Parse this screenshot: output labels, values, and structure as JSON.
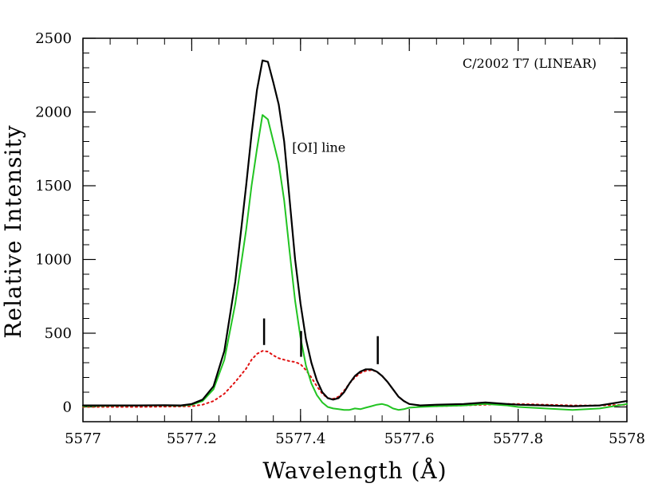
{
  "chart_data": {
    "type": "line",
    "title": "C/2002 T7 (LINEAR)",
    "xlabel": "Wavelength (Å)",
    "ylabel": "Relative Intensity",
    "xlim": [
      5577.0,
      5578.0
    ],
    "ylim": [
      -100,
      2500
    ],
    "x_ticks": [
      5577.0,
      5577.2,
      5577.4,
      5577.6,
      5577.8,
      5578.0
    ],
    "x_tick_labels": [
      "5577",
      "5577.2",
      "5577.4",
      "5577.6",
      "5577.8",
      "5578"
    ],
    "y_ticks": [
      0,
      500,
      1000,
      1500,
      2000,
      2500
    ],
    "y_tick_labels": [
      "0",
      "500",
      "1000",
      "1500",
      "2000",
      "2500"
    ],
    "annotations": [
      {
        "text": "[OI] line",
        "x": 5577.405,
        "y": 1730
      }
    ],
    "line_markers": [
      {
        "x": 5577.333,
        "y_bottom": 420,
        "y_top": 600
      },
      {
        "x": 5577.401,
        "y_bottom": 340,
        "y_top": 515
      },
      {
        "x": 5577.542,
        "y_bottom": 290,
        "y_top": 480
      }
    ],
    "series": [
      {
        "color": "#000000",
        "style": "solid",
        "x": [
          5577.0,
          5577.05,
          5577.1,
          5577.15,
          5577.18,
          5577.2,
          5577.22,
          5577.24,
          5577.26,
          5577.28,
          5577.3,
          5577.31,
          5577.32,
          5577.33,
          5577.34,
          5577.35,
          5577.36,
          5577.37,
          5577.38,
          5577.39,
          5577.4,
          5577.41,
          5577.42,
          5577.43,
          5577.44,
          5577.45,
          5577.46,
          5577.47,
          5577.48,
          5577.49,
          5577.5,
          5577.51,
          5577.52,
          5577.53,
          5577.54,
          5577.55,
          5577.56,
          5577.57,
          5577.58,
          5577.59,
          5577.6,
          5577.62,
          5577.65,
          5577.7,
          5577.74,
          5577.78,
          5577.8,
          5577.85,
          5577.9,
          5577.95,
          5578.0
        ],
        "values": [
          10,
          10,
          10,
          12,
          10,
          20,
          50,
          140,
          380,
          850,
          1500,
          1850,
          2150,
          2350,
          2340,
          2200,
          2050,
          1800,
          1400,
          1000,
          700,
          460,
          300,
          180,
          100,
          60,
          50,
          60,
          100,
          160,
          210,
          240,
          255,
          255,
          240,
          210,
          170,
          120,
          70,
          40,
          20,
          10,
          15,
          20,
          30,
          20,
          15,
          10,
          5,
          10,
          40
        ]
      },
      {
        "color": "#22c422",
        "style": "solid",
        "x": [
          5577.0,
          5577.05,
          5577.1,
          5577.15,
          5577.18,
          5577.2,
          5577.22,
          5577.24,
          5577.26,
          5577.28,
          5577.3,
          5577.31,
          5577.32,
          5577.33,
          5577.34,
          5577.35,
          5577.36,
          5577.37,
          5577.38,
          5577.39,
          5577.4,
          5577.41,
          5577.42,
          5577.43,
          5577.44,
          5577.45,
          5577.46,
          5577.47,
          5577.48,
          5577.49,
          5577.5,
          5577.51,
          5577.52,
          5577.53,
          5577.54,
          5577.55,
          5577.56,
          5577.57,
          5577.58,
          5577.59,
          5577.6,
          5577.62,
          5577.65,
          5577.7,
          5577.74,
          5577.78,
          5577.8,
          5577.85,
          5577.9,
          5577.95,
          5578.0
        ],
        "values": [
          5,
          8,
          10,
          10,
          8,
          15,
          40,
          120,
          320,
          700,
          1200,
          1500,
          1750,
          1980,
          1950,
          1800,
          1650,
          1400,
          1050,
          720,
          470,
          280,
          160,
          80,
          30,
          0,
          -10,
          -15,
          -20,
          -20,
          -10,
          -15,
          -5,
          5,
          15,
          20,
          10,
          -10,
          -20,
          -15,
          -5,
          0,
          5,
          10,
          20,
          10,
          0,
          -10,
          -20,
          -10,
          20
        ]
      },
      {
        "color": "#e01010",
        "style": "dotted",
        "x": [
          5577.0,
          5577.05,
          5577.1,
          5577.15,
          5577.18,
          5577.2,
          5577.22,
          5577.24,
          5577.26,
          5577.28,
          5577.3,
          5577.31,
          5577.32,
          5577.33,
          5577.34,
          5577.35,
          5577.36,
          5577.37,
          5577.38,
          5577.39,
          5577.4,
          5577.41,
          5577.42,
          5577.43,
          5577.44,
          5577.45,
          5577.46,
          5577.47,
          5577.48,
          5577.49,
          5577.5,
          5577.51,
          5577.52,
          5577.53,
          5577.54,
          5577.55,
          5577.56,
          5577.57,
          5577.58,
          5577.59,
          5577.6,
          5577.62,
          5577.65,
          5577.7,
          5577.74,
          5577.78,
          5577.8,
          5577.85,
          5577.9,
          5577.95,
          5578.0
        ],
        "values": [
          0,
          0,
          0,
          2,
          3,
          5,
          15,
          40,
          90,
          170,
          260,
          320,
          360,
          380,
          375,
          350,
          330,
          320,
          310,
          305,
          290,
          250,
          200,
          140,
          90,
          60,
          55,
          70,
          110,
          160,
          200,
          230,
          245,
          250,
          240,
          210,
          170,
          120,
          70,
          40,
          20,
          10,
          5,
          10,
          15,
          20,
          20,
          15,
          10,
          10,
          15
        ]
      }
    ]
  }
}
